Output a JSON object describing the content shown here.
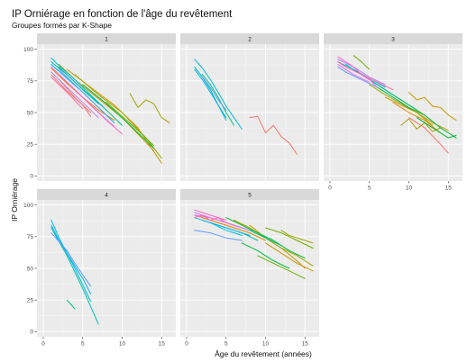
{
  "colors": {
    "panel_bg": "#ebebeb",
    "strip_bg": "#d9d9d9",
    "grid_major": "#ffffff",
    "grid_minor": "#f5f5f5"
  },
  "chart_data": {
    "type": "line",
    "title": "IP Orniérage en fonction de l'âge du revêtement",
    "subtitle": "Groupes formés par K-Shape",
    "xlabel": "Âge du revêtement (années)",
    "ylabel": "IP Orniérage",
    "xlim": [
      -0.8,
      16.8
    ],
    "ylim": [
      -4,
      104
    ],
    "x_ticks": [
      0,
      5,
      10,
      15
    ],
    "y_ticks": [
      0,
      25,
      50,
      75,
      100
    ],
    "grid": true,
    "legend": "none",
    "panels": [
      {
        "label": "1",
        "series": [
          {
            "color": "#F8766D",
            "x": [
              1,
              3,
              5,
              6
            ],
            "y": [
              80,
              67,
              56,
              47
            ]
          },
          {
            "color": "#F8766D",
            "x": [
              2,
              4,
              6
            ],
            "y": [
              76,
              62,
              50
            ]
          },
          {
            "color": "#E58700",
            "x": [
              1,
              3,
              5,
              7,
              9
            ],
            "y": [
              85,
              73,
              62,
              52,
              44
            ]
          },
          {
            "color": "#C99800",
            "x": [
              2,
              4,
              6,
              8,
              10,
              12,
              14
            ],
            "y": [
              88,
              76,
              66,
              56,
              46,
              33,
              20
            ]
          },
          {
            "color": "#C99800",
            "x": [
              3,
              6,
              9,
              12,
              15
            ],
            "y": [
              84,
              70,
              56,
              38,
              10
            ]
          },
          {
            "color": "#A3A500",
            "x": [
              11,
              12,
              13,
              14,
              15,
              16
            ],
            "y": [
              65,
              54,
              60,
              57,
              46,
              42
            ]
          },
          {
            "color": "#A3A500",
            "x": [
              4,
              7,
              10,
              13,
              15
            ],
            "y": [
              80,
              64,
              50,
              30,
              14
            ]
          },
          {
            "color": "#6BB100",
            "x": [
              8,
              10,
              12,
              14
            ],
            "y": [
              58,
              47,
              36,
              24
            ]
          },
          {
            "color": "#00BA38",
            "x": [
              5,
              8,
              11,
              14
            ],
            "y": [
              72,
              57,
              40,
              22
            ]
          },
          {
            "color": "#00BF7D",
            "x": [
              2,
              4,
              6,
              8,
              10
            ],
            "y": [
              86,
              74,
              63,
              52,
              40
            ]
          },
          {
            "color": "#00C0AF",
            "x": [
              1,
              3,
              5,
              7
            ],
            "y": [
              90,
              80,
              68,
              57
            ]
          },
          {
            "color": "#00BCD8",
            "x": [
              1,
              2,
              4,
              6,
              8
            ],
            "y": [
              93,
              87,
              76,
              64,
              52
            ]
          },
          {
            "color": "#00B0F6",
            "x": [
              1,
              3,
              5,
              7,
              9
            ],
            "y": [
              88,
              77,
              66,
              54,
              42
            ]
          },
          {
            "color": "#619CFF",
            "x": [
              2,
              4,
              6,
              8
            ],
            "y": [
              84,
              72,
              60,
              48
            ]
          },
          {
            "color": "#B983FF",
            "x": [
              1,
              3,
              5,
              7
            ],
            "y": [
              82,
              70,
              58,
              46
            ]
          },
          {
            "color": "#E76BF3",
            "x": [
              1,
              3,
              5,
              7,
              9
            ],
            "y": [
              86,
              74,
              62,
              50,
              39
            ]
          },
          {
            "color": "#FD61D1",
            "x": [
              2,
              4,
              6,
              8,
              10
            ],
            "y": [
              80,
              68,
              56,
              44,
              33
            ]
          },
          {
            "color": "#FF67A4",
            "x": [
              1,
              3,
              5
            ],
            "y": [
              78,
              66,
              53
            ]
          }
        ]
      },
      {
        "label": "2",
        "series": [
          {
            "color": "#F8766D",
            "x": [
              8,
              9,
              10,
              11,
              12,
              13,
              14
            ],
            "y": [
              46,
              47,
              34,
              40,
              31,
              26,
              17
            ]
          },
          {
            "color": "#00BF7D",
            "x": [
              2,
              3,
              4,
              5,
              6
            ],
            "y": [
              80,
              72,
              62,
              50,
              40
            ]
          },
          {
            "color": "#00C0AF",
            "x": [
              1,
              2,
              3,
              4,
              5
            ],
            "y": [
              86,
              78,
              68,
              56,
              44
            ]
          },
          {
            "color": "#00BCD8",
            "x": [
              1,
              2,
              3,
              4,
              5,
              6,
              7
            ],
            "y": [
              92,
              85,
              76,
              66,
              55,
              46,
              37
            ]
          },
          {
            "color": "#00B0F6",
            "x": [
              1,
              2,
              3,
              4,
              5
            ],
            "y": [
              84,
              76,
              66,
              56,
              46
            ]
          },
          {
            "color": "#619CFF",
            "x": [
              2,
              3,
              4,
              5
            ],
            "y": [
              78,
              70,
              60,
              52
            ]
          }
        ]
      },
      {
        "label": "3",
        "series": [
          {
            "color": "#F8766D",
            "x": [
              10,
              12,
              14,
              15
            ],
            "y": [
              46,
              38,
              25,
              18
            ]
          },
          {
            "color": "#E58700",
            "x": [
              8,
              10,
              12,
              14
            ],
            "y": [
              58,
              50,
              44,
              34
            ]
          },
          {
            "color": "#C99800",
            "x": [
              7,
              9,
              11,
              13,
              15
            ],
            "y": [
              62,
              56,
              50,
              42,
              36
            ]
          },
          {
            "color": "#C99800",
            "x": [
              10,
              11,
              12,
              13,
              14,
              15,
              16
            ],
            "y": [
              66,
              60,
              62,
              55,
              54,
              48,
              44
            ]
          },
          {
            "color": "#A3A500",
            "x": [
              5,
              7,
              9,
              11,
              13
            ],
            "y": [
              72,
              64,
              57,
              50,
              40
            ]
          },
          {
            "color": "#A3A500",
            "x": [
              9,
              10,
              11,
              12,
              13,
              14
            ],
            "y": [
              40,
              45,
              37,
              42,
              35,
              38
            ]
          },
          {
            "color": "#6BB100",
            "x": [
              4,
              6,
              8,
              10,
              12
            ],
            "y": [
              80,
              72,
              64,
              56,
              48
            ]
          },
          {
            "color": "#6BB100",
            "x": [
              3,
              4,
              5
            ],
            "y": [
              95,
              90,
              84
            ]
          },
          {
            "color": "#00BA38",
            "x": [
              6,
              8,
              10,
              12,
              14,
              16
            ],
            "y": [
              70,
              62,
              54,
              48,
              38,
              30
            ]
          },
          {
            "color": "#00BA38",
            "x": [
              11,
              13,
              15,
              16
            ],
            "y": [
              46,
              38,
              30,
              32
            ]
          },
          {
            "color": "#00BF7D",
            "x": [
              3,
              5,
              7,
              9,
              11
            ],
            "y": [
              84,
              76,
              68,
              60,
              52
            ]
          },
          {
            "color": "#00C0AF",
            "x": [
              2,
              4,
              6,
              8
            ],
            "y": [
              88,
              80,
              72,
              64
            ]
          },
          {
            "color": "#00BCD8",
            "x": [
              1,
              3,
              5,
              7
            ],
            "y": [
              90,
              84,
              77,
              70
            ]
          },
          {
            "color": "#619CFF",
            "x": [
              1,
              2,
              4,
              6
            ],
            "y": [
              86,
              82,
              76,
              70
            ]
          },
          {
            "color": "#B983FF",
            "x": [
              1,
              3,
              5,
              7
            ],
            "y": [
              92,
              86,
              78,
              72
            ]
          },
          {
            "color": "#E76BF3",
            "x": [
              1,
              3,
              5
            ],
            "y": [
              88,
              80,
              74
            ]
          },
          {
            "color": "#FD61D1",
            "x": [
              1,
              2,
              3,
              4,
              5,
              6
            ],
            "y": [
              94,
              90,
              86,
              80,
              76,
              70
            ]
          },
          {
            "color": "#FF67A4",
            "x": [
              1,
              2,
              4,
              6,
              8
            ],
            "y": [
              90,
              86,
              80,
              74,
              68
            ]
          }
        ]
      },
      {
        "label": "4",
        "series": [
          {
            "color": "#00BF7D",
            "x": [
              3,
              4
            ],
            "y": [
              25,
              18
            ]
          },
          {
            "color": "#00C0AF",
            "x": [
              1,
              3,
              5,
              7
            ],
            "y": [
              82,
              60,
              34,
              6
            ]
          },
          {
            "color": "#00BCD8",
            "x": [
              1,
              2,
              4,
              6
            ],
            "y": [
              88,
              74,
              50,
              24
            ]
          },
          {
            "color": "#00B0F6",
            "x": [
              1,
              2,
              3,
              5,
              6
            ],
            "y": [
              84,
              72,
              62,
              42,
              30
            ]
          },
          {
            "color": "#619CFF",
            "x": [
              1,
              3,
              4,
              6
            ],
            "y": [
              78,
              64,
              54,
              36
            ]
          }
        ]
      },
      {
        "label": "5",
        "series": [
          {
            "color": "#F8766D",
            "x": [
              1,
              3,
              5,
              7
            ],
            "y": [
              92,
              88,
              84,
              80
            ]
          },
          {
            "color": "#E58700",
            "x": [
              2,
              4,
              6,
              8,
              10
            ],
            "y": [
              90,
              86,
              82,
              78,
              72
            ]
          },
          {
            "color": "#C99800",
            "x": [
              8,
              10,
              12,
              14,
              15
            ],
            "y": [
              84,
              74,
              66,
              56,
              50
            ]
          },
          {
            "color": "#C99800",
            "x": [
              10,
              12,
              14,
              16
            ],
            "y": [
              70,
              62,
              54,
              48
            ]
          },
          {
            "color": "#A3A500",
            "x": [
              6,
              8,
              10,
              12,
              14,
              16
            ],
            "y": [
              88,
              82,
              74,
              66,
              60,
              52
            ]
          },
          {
            "color": "#A3A500",
            "x": [
              12,
              13,
              14,
              15,
              16
            ],
            "y": [
              80,
              76,
              74,
              72,
              70
            ]
          },
          {
            "color": "#6BB100",
            "x": [
              9,
              11,
              13,
              15
            ],
            "y": [
              60,
              54,
              48,
              42
            ]
          },
          {
            "color": "#6BB100",
            "x": [
              10,
              12,
              14,
              16
            ],
            "y": [
              82,
              78,
              72,
              66
            ]
          },
          {
            "color": "#00BA38",
            "x": [
              5,
              7,
              9,
              11,
              13,
              15
            ],
            "y": [
              90,
              84,
              78,
              72,
              64,
              58
            ]
          },
          {
            "color": "#00BA38",
            "x": [
              7,
              9,
              11,
              13
            ],
            "y": [
              70,
              64,
              56,
              50
            ]
          },
          {
            "color": "#00BF7D",
            "x": [
              4,
              6,
              8,
              10,
              12
            ],
            "y": [
              88,
              84,
              80,
              74,
              68
            ]
          },
          {
            "color": "#00C0AF",
            "x": [
              3,
              5,
              7,
              9
            ],
            "y": [
              86,
              82,
              78,
              72
            ]
          },
          {
            "color": "#00BCD8",
            "x": [
              1,
              3,
              5,
              7
            ],
            "y": [
              90,
              86,
              80,
              76
            ]
          },
          {
            "color": "#00B0F6",
            "x": [
              2,
              4,
              6,
              8
            ],
            "y": [
              88,
              84,
              80,
              76
            ]
          },
          {
            "color": "#619CFF",
            "x": [
              1,
              3,
              5,
              7
            ],
            "y": [
              80,
              78,
              74,
              72
            ]
          },
          {
            "color": "#B983FF",
            "x": [
              1,
              2,
              4,
              6,
              8
            ],
            "y": [
              94,
              92,
              88,
              84,
              80
            ]
          },
          {
            "color": "#E76BF3",
            "x": [
              1,
              3,
              5,
              7
            ],
            "y": [
              92,
              90,
              86,
              82
            ]
          },
          {
            "color": "#FD61D1",
            "x": [
              1,
              2,
              3,
              5
            ],
            "y": [
              96,
              94,
              92,
              88
            ]
          },
          {
            "color": "#FF67A4",
            "x": [
              1,
              2,
              3,
              4,
              5,
              6
            ],
            "y": [
              90,
              92,
              88,
              90,
              86,
              84
            ]
          }
        ]
      }
    ]
  }
}
